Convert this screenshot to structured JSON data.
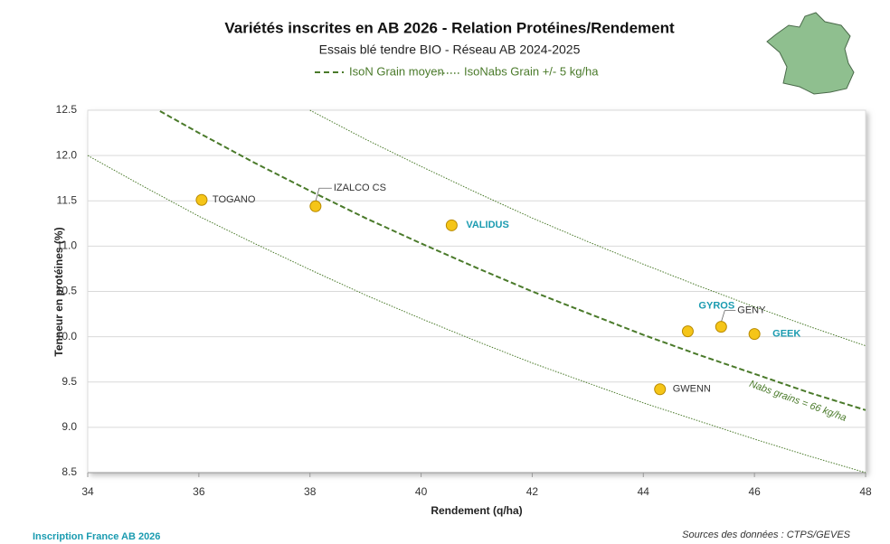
{
  "chart_data": {
    "type": "scatter",
    "title": "Variétés inscrites en AB 2026 - Relation Protéines/Rendement",
    "subtitle": "Essais blé tendre BIO - Réseau AB 2024-2025",
    "x_label": "Rendement (q/ha)",
    "y_label": "Tenneur en protéines (%)",
    "xlim": [
      34,
      48
    ],
    "ylim": [
      8.5,
      12.5
    ],
    "xticks": [
      34,
      36,
      38,
      40,
      42,
      44,
      46,
      48
    ],
    "yticks": [
      8.5,
      {
        "value": 9,
        "label": "9.0"
      },
      9.5,
      {
        "value": 10,
        "label": "10.0"
      },
      10.5,
      {
        "value": 11,
        "label": "11.0"
      },
      11.5,
      {
        "value": 12,
        "label": "12.0"
      },
      12.5
    ],
    "grid": true,
    "points": {
      "color": "#f5c518",
      "labels": [
        "TOGANO",
        "IZALCO CS",
        "VALIDUS",
        "GYROS",
        "GENY",
        "GEEK",
        "GWENN"
      ],
      "x": [
        36.05,
        38.1,
        40.55,
        44.8,
        45.4,
        46.0,
        44.3
      ],
      "values": [
        11.51,
        11.44,
        11.23,
        10.06,
        10.11,
        10.03,
        9.42
      ],
      "highlighted": [
        false,
        false,
        true,
        true,
        false,
        true,
        false
      ],
      "highlight_color": "#1a9bb0"
    },
    "lines": [
      {
        "name": "IsoN Grain moyen",
        "style": "dashed",
        "color": "#4a7a2a",
        "curves": [
          {
            "x": [
              35.3,
              36,
              37,
              38,
              39,
              40,
              41,
              42,
              43,
              44,
              45,
              46,
              47,
              48
            ],
            "values": [
              12.49,
              12.25,
              11.92,
              11.61,
              11.31,
              11.03,
              10.76,
              10.5,
              10.26,
              10.02,
              9.8,
              9.59,
              9.38,
              9.19
            ]
          }
        ]
      },
      {
        "name": "IsoNabs Grain +/- 5 kg/ha",
        "style": "dotted",
        "color": "#4a7a2a",
        "curves": [
          {
            "x": [
              38,
              39,
              40,
              41,
              42,
              43,
              44,
              45,
              46,
              47,
              48
            ],
            "values": [
              12.5,
              12.18,
              11.88,
              11.59,
              11.31,
              11.05,
              10.8,
              10.56,
              10.33,
              10.11,
              9.9
            ]
          },
          {
            "x": [
              34,
              35,
              36,
              37,
              38,
              39,
              40,
              41,
              42,
              43,
              44,
              45,
              46,
              47,
              48
            ],
            "values": [
              12.0,
              11.66,
              11.33,
              11.03,
              10.74,
              10.46,
              10.2,
              9.95,
              9.71,
              9.49,
              9.27,
              9.07,
              8.87,
              8.68,
              8.5
            ]
          }
        ]
      }
    ],
    "annotation": "Nabs grains = 66 kg/ha",
    "footer_left": "Inscription France AB 2026",
    "footer_right": "Sources des données : CTPS/GEVES"
  }
}
